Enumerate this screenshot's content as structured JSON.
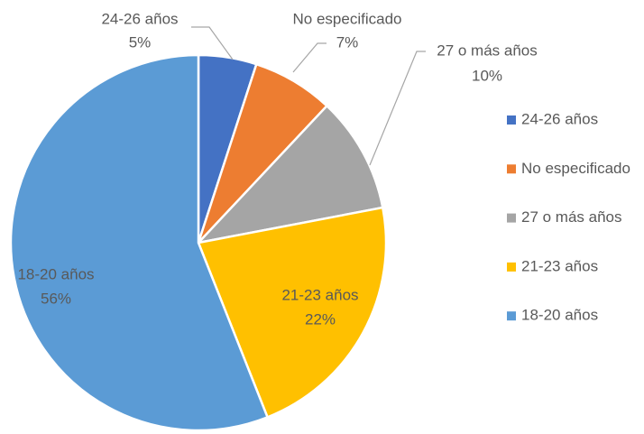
{
  "chart_data": {
    "type": "pie",
    "categories": [
      "24-26 años",
      "No especificado",
      "27 o más años",
      "21-23 años",
      "18-20 años"
    ],
    "values": [
      5,
      7,
      10,
      22,
      56
    ],
    "value_labels": [
      "5%",
      "7%",
      "10%",
      "22%",
      "56%"
    ],
    "colors": [
      "#4472c4",
      "#ed7d31",
      "#a5a5a5",
      "#ffc000",
      "#5b9bd5"
    ],
    "legend": "right"
  }
}
